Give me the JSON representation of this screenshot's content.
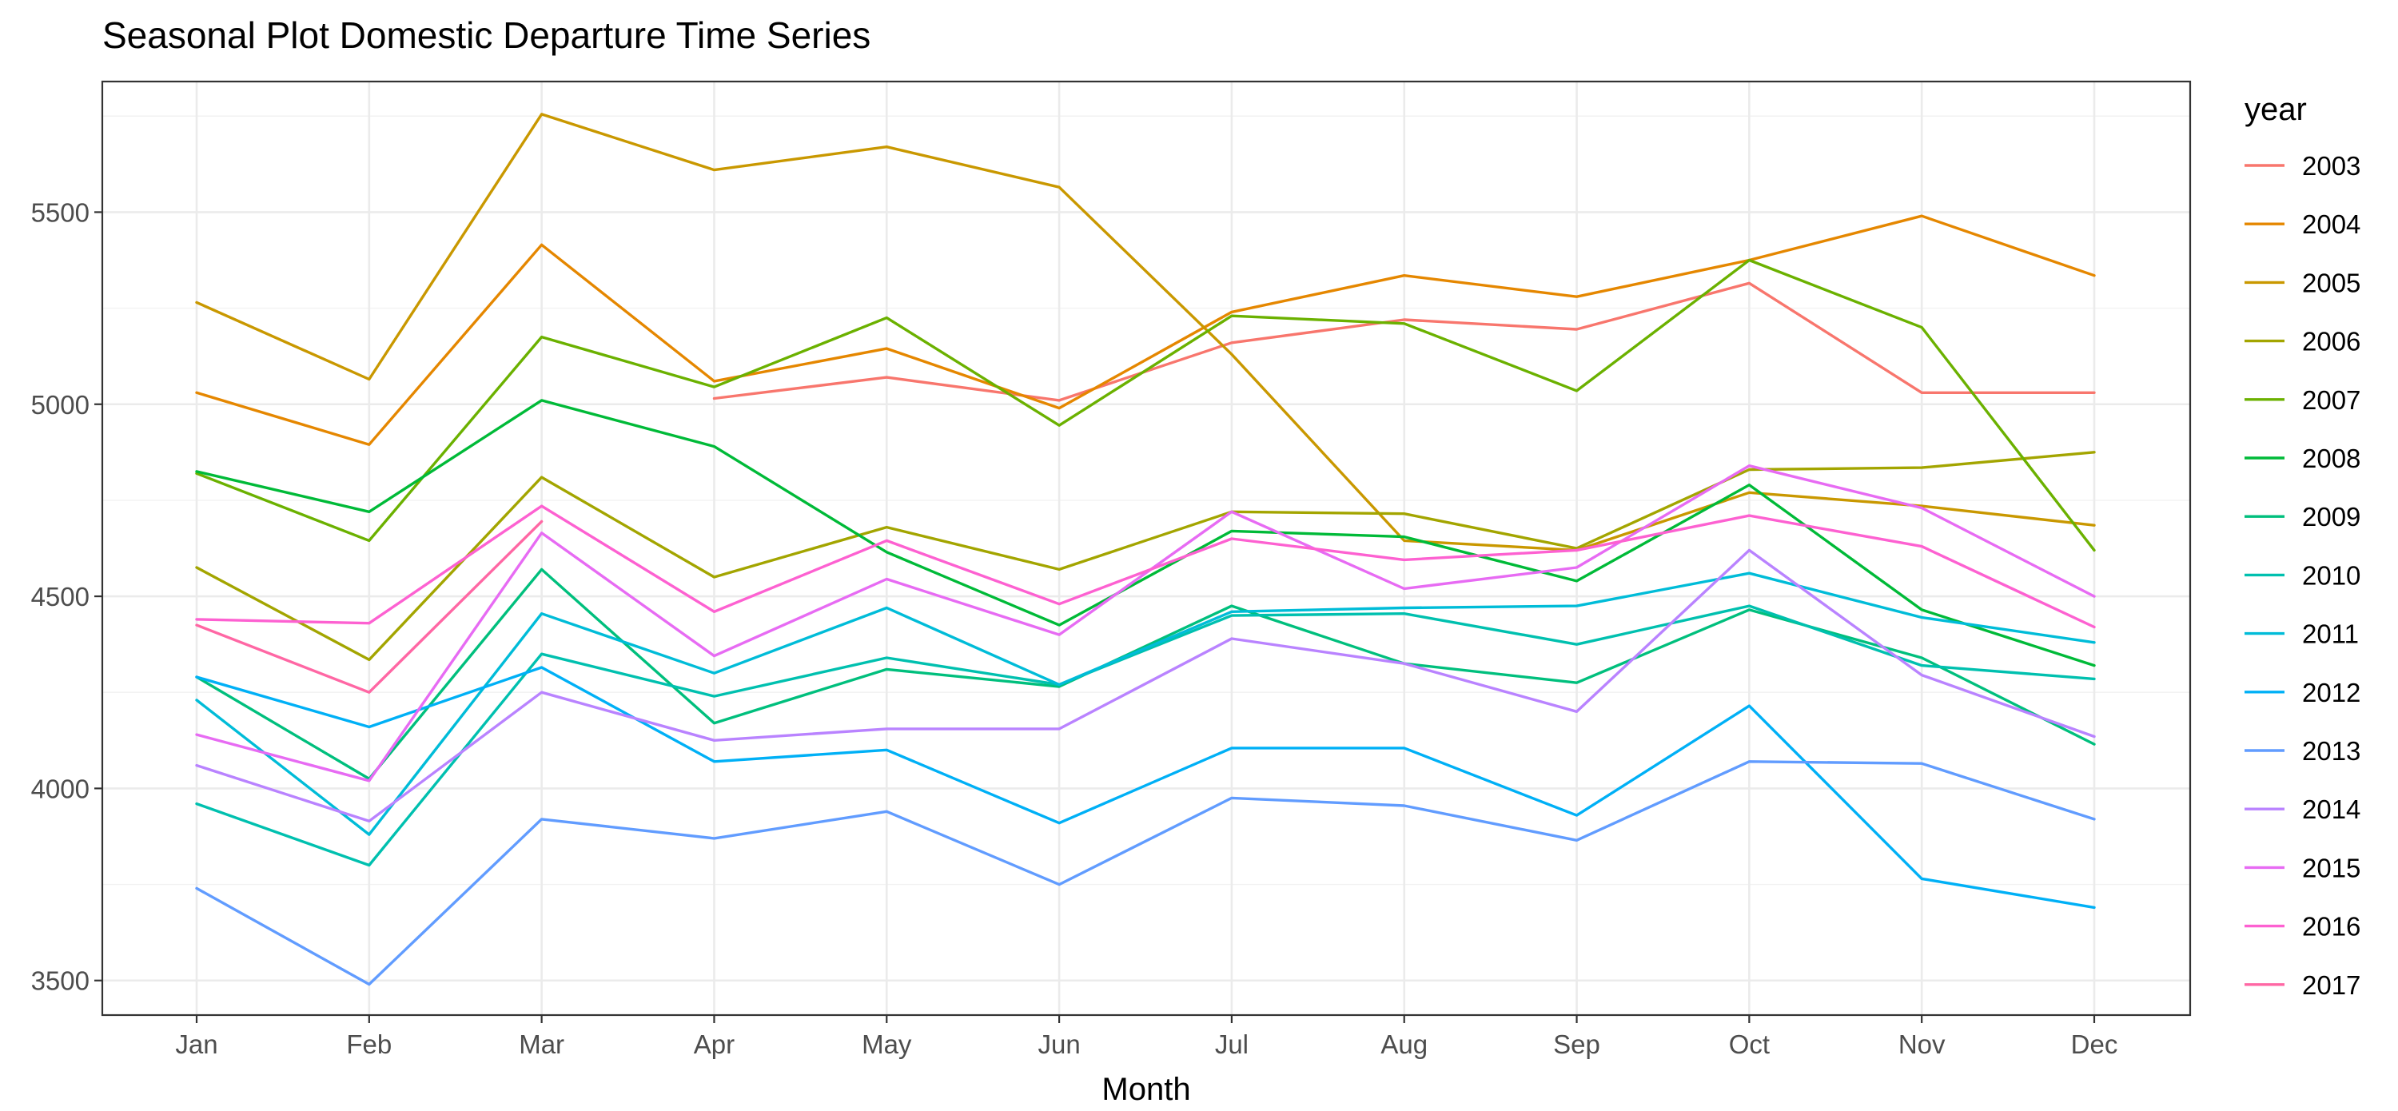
{
  "chart_data": {
    "type": "line",
    "title": "Seasonal Plot Domestic Departure Time Series",
    "xlabel": "Month",
    "ylabel": "",
    "categories": [
      "Jan",
      "Feb",
      "Mar",
      "Apr",
      "May",
      "Jun",
      "Jul",
      "Aug",
      "Sep",
      "Oct",
      "Nov",
      "Dec"
    ],
    "yticks": [
      3500,
      4000,
      4500,
      5000,
      5500
    ],
    "ylim": [
      3410,
      5840
    ],
    "grid": true,
    "legend_title": "year",
    "legend_position": "right",
    "series": [
      {
        "name": "2003",
        "color": "#F8766D",
        "values": [
          null,
          null,
          null,
          5015,
          5070,
          5010,
          5160,
          5220,
          5195,
          5315,
          5030,
          5030
        ]
      },
      {
        "name": "2004",
        "color": "#E58700",
        "values": [
          5030,
          4895,
          5415,
          5060,
          5145,
          4990,
          5240,
          5335,
          5280,
          5375,
          5490,
          5335
        ]
      },
      {
        "name": "2005",
        "color": "#C99800",
        "values": [
          5265,
          5065,
          5755,
          5610,
          5670,
          5565,
          5130,
          4645,
          4620,
          4770,
          4735,
          4685
        ]
      },
      {
        "name": "2006",
        "color": "#A3A500",
        "values": [
          4575,
          4335,
          4810,
          4550,
          4680,
          4570,
          4720,
          4715,
          4625,
          4830,
          4835,
          4875
        ]
      },
      {
        "name": "2007",
        "color": "#6BB100",
        "values": [
          4820,
          4645,
          5175,
          5045,
          5225,
          4945,
          5230,
          5210,
          5035,
          5375,
          5200,
          4620
        ]
      },
      {
        "name": "2008",
        "color": "#00BA38",
        "values": [
          4825,
          4720,
          5010,
          4890,
          4615,
          4425,
          4670,
          4655,
          4540,
          4790,
          4465,
          4320
        ]
      },
      {
        "name": "2009",
        "color": "#00BF7D",
        "values": [
          4290,
          4025,
          4570,
          4170,
          4310,
          4265,
          4475,
          4325,
          4275,
          4465,
          4340,
          4115
        ]
      },
      {
        "name": "2010",
        "color": "#00C0AF",
        "values": [
          3960,
          3800,
          4350,
          4240,
          4340,
          4270,
          4450,
          4455,
          4375,
          4475,
          4320,
          4285
        ]
      },
      {
        "name": "2011",
        "color": "#00BCD8",
        "values": [
          4230,
          3880,
          4455,
          4300,
          4470,
          4270,
          4460,
          4470,
          4475,
          4560,
          4445,
          4380
        ]
      },
      {
        "name": "2012",
        "color": "#00B0F6",
        "values": [
          4290,
          4160,
          4315,
          4070,
          4100,
          3910,
          4105,
          4105,
          3930,
          4215,
          3765,
          3690
        ]
      },
      {
        "name": "2013",
        "color": "#619CFF",
        "values": [
          3740,
          3490,
          3920,
          3870,
          3940,
          3750,
          3975,
          3955,
          3865,
          4070,
          4065,
          3920
        ]
      },
      {
        "name": "2014",
        "color": "#B983FF",
        "values": [
          4060,
          3915,
          4250,
          4125,
          4155,
          4155,
          4390,
          4325,
          4200,
          4620,
          4295,
          4135
        ]
      },
      {
        "name": "2015",
        "color": "#E76BF3",
        "values": [
          4140,
          4020,
          4665,
          4345,
          4545,
          4400,
          4720,
          4520,
          4575,
          4840,
          4730,
          4500
        ]
      },
      {
        "name": "2016",
        "color": "#FD61D1",
        "values": [
          4440,
          4430,
          4735,
          4460,
          4645,
          4480,
          4650,
          4595,
          4620,
          4710,
          4630,
          4420
        ]
      },
      {
        "name": "2017",
        "color": "#FF67A4",
        "values": [
          4425,
          4250,
          4695,
          null,
          null,
          null,
          null,
          null,
          null,
          null,
          null,
          null
        ]
      }
    ]
  }
}
